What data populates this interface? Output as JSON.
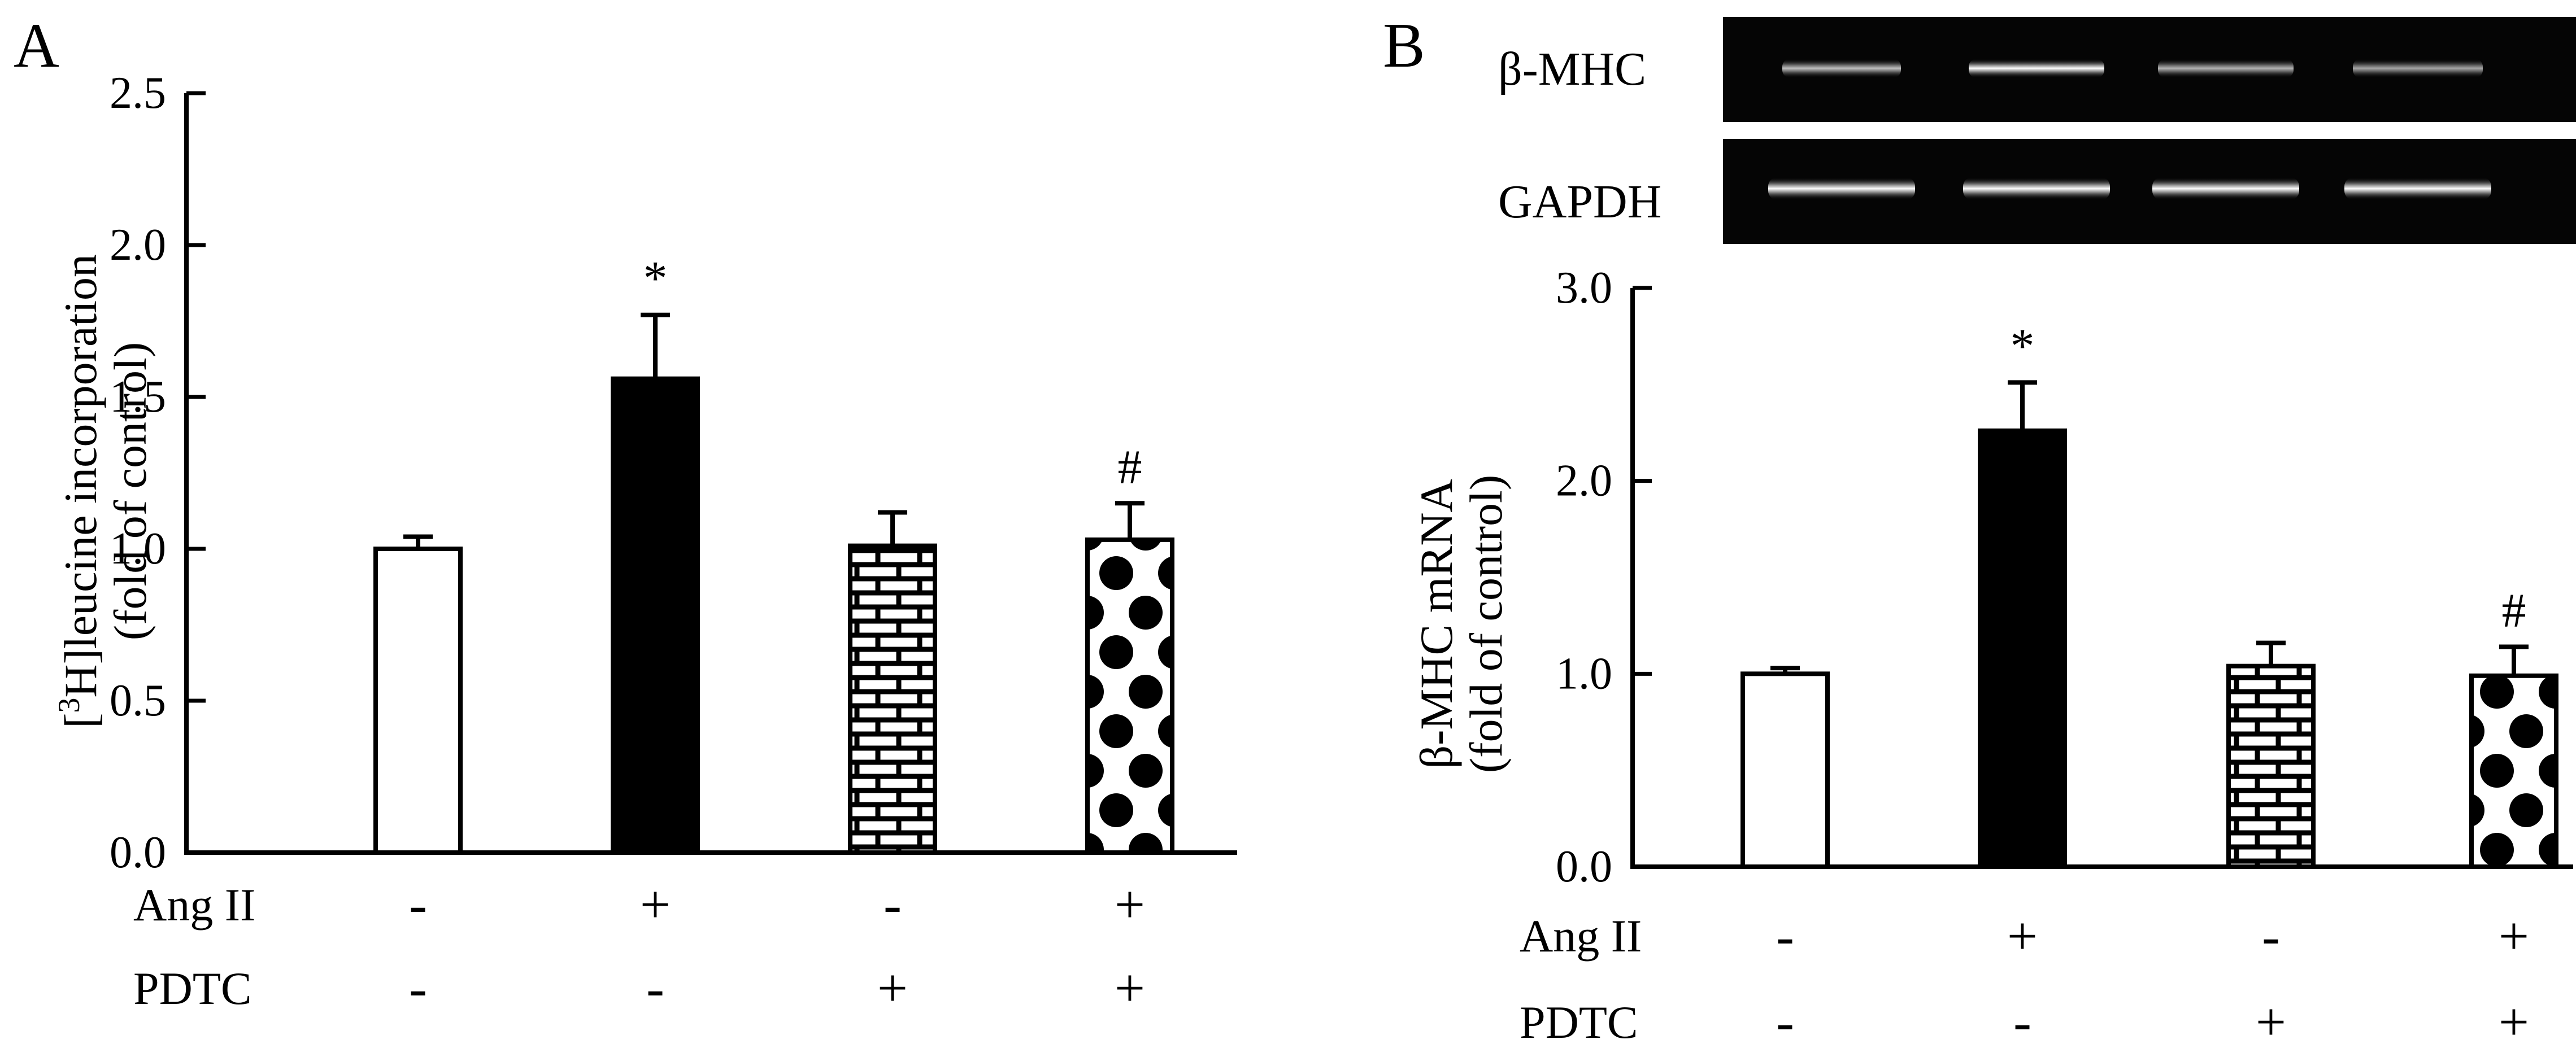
{
  "panels": [
    {
      "letter": "A",
      "ylabel_line1_pre": "[",
      "ylabel_line1_sup": "3",
      "ylabel_line1_post": "H]leucine incorporation",
      "ylabel_line2": "(fold of control)",
      "treatment_rows": [
        {
          "label": "Ang II",
          "signs": [
            "-",
            "+",
            "-",
            "+"
          ]
        },
        {
          "label": "PDTC",
          "signs": [
            "-",
            "-",
            "+",
            "+"
          ]
        }
      ]
    },
    {
      "letter": "B",
      "ylabel_line1": "β-MHC mRNA",
      "ylabel_line2": "(fold of control)",
      "gel_labels": [
        "β-MHC",
        "GAPDH"
      ],
      "treatment_rows": [
        {
          "label": "Ang II",
          "signs": [
            "-",
            "+",
            "-",
            "+"
          ]
        },
        {
          "label": "PDTC",
          "signs": [
            "-",
            "-",
            "+",
            "+"
          ]
        }
      ]
    }
  ],
  "chart_data": [
    {
      "type": "bar",
      "panel": "A",
      "categories": [
        "Ang II - / PDTC -",
        "Ang II + / PDTC -",
        "Ang II - / PDTC +",
        "Ang II + / PDTC +"
      ],
      "values": [
        1.0,
        1.56,
        1.01,
        1.03
      ],
      "errors": [
        0.04,
        0.21,
        0.11,
        0.12
      ],
      "annotations": [
        "",
        "*",
        "",
        "#"
      ],
      "fills": [
        "open",
        "solid",
        "brick",
        "dots"
      ],
      "ylim": [
        0,
        2.5
      ],
      "yticks": [
        "0.0",
        "0.5",
        "1.0",
        "1.5",
        "2.0",
        "2.5"
      ],
      "ytick_values": [
        0,
        0.5,
        1.0,
        1.5,
        2.0,
        2.5
      ],
      "grid": false
    },
    {
      "type": "bar",
      "panel": "B",
      "categories": [
        "Ang II - / PDTC -",
        "Ang II + / PDTC -",
        "Ang II - / PDTC +",
        "Ang II + / PDTC +"
      ],
      "values": [
        1.0,
        2.26,
        1.04,
        0.99
      ],
      "errors": [
        0.03,
        0.25,
        0.12,
        0.15
      ],
      "annotations": [
        "",
        "*",
        "",
        "#"
      ],
      "fills": [
        "open",
        "solid",
        "brick",
        "dots"
      ],
      "ylim": [
        0,
        3.0
      ],
      "yticks": [
        "0.0",
        "1.0",
        "2.0",
        "3.0"
      ],
      "ytick_values": [
        0,
        1.0,
        2.0,
        3.0
      ],
      "grid": false
    }
  ]
}
